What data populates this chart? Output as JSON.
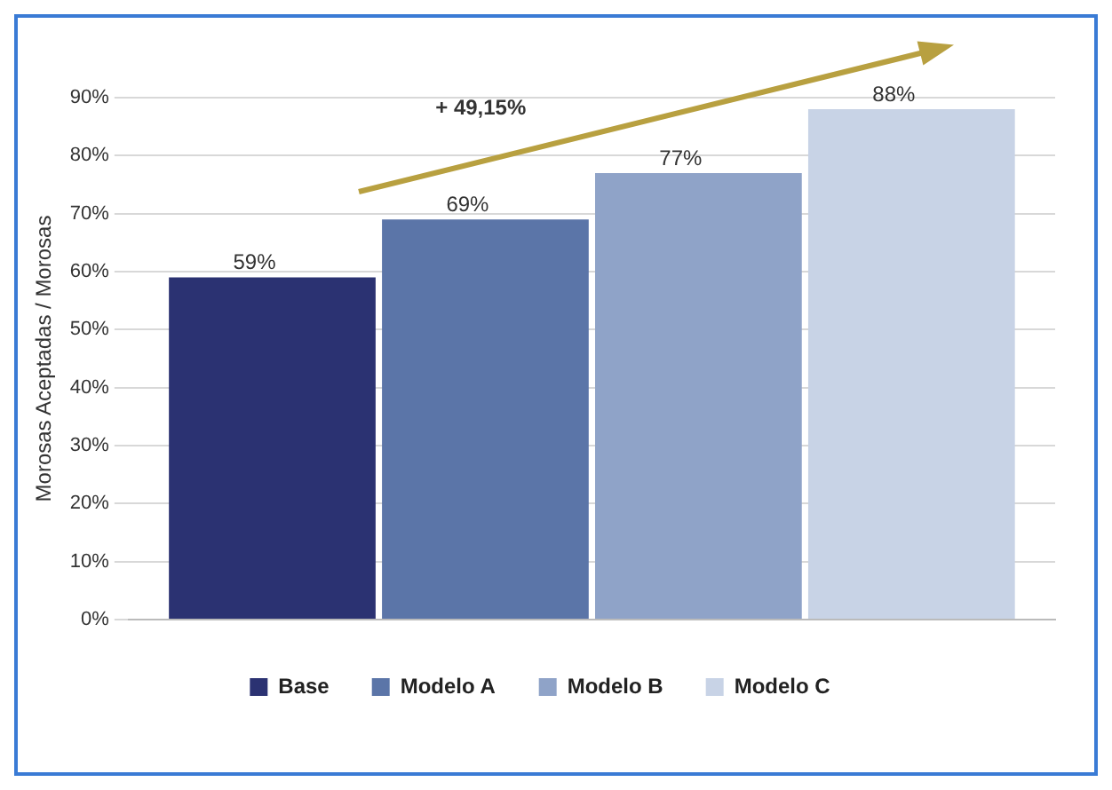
{
  "chart_data": {
    "type": "bar",
    "ylabel": "Morosas Aceptadas / Morosas",
    "categories": [
      null
    ],
    "series": [
      {
        "name": "Base",
        "color": "#2b3272",
        "values": [
          59
        ],
        "value_labels": [
          "59%"
        ]
      },
      {
        "name": "Modelo A",
        "color": "#5b75a8",
        "values": [
          69
        ],
        "value_labels": [
          "69%"
        ]
      },
      {
        "name": "Modelo B",
        "color": "#8fa3c8",
        "values": [
          77
        ],
        "value_labels": [
          "77%"
        ]
      },
      {
        "name": "Modelo C",
        "color": "#c8d3e6",
        "values": [
          88
        ],
        "value_labels": [
          "88%"
        ]
      }
    ],
    "ylim": [
      0,
      90
    ],
    "yticks": [
      {
        "value": 0,
        "label": "0%"
      },
      {
        "value": 10,
        "label": "10%"
      },
      {
        "value": 20,
        "label": "20%"
      },
      {
        "value": 30,
        "label": "30%"
      },
      {
        "value": 40,
        "label": "40%"
      },
      {
        "value": 50,
        "label": "50%"
      },
      {
        "value": 60,
        "label": "60%"
      },
      {
        "value": 70,
        "label": "70%"
      },
      {
        "value": 80,
        "label": "80%"
      },
      {
        "value": 90,
        "label": "90%"
      }
    ],
    "annotations": [
      "+ 49,15%"
    ],
    "grid": "y",
    "legend": "bottom"
  }
}
